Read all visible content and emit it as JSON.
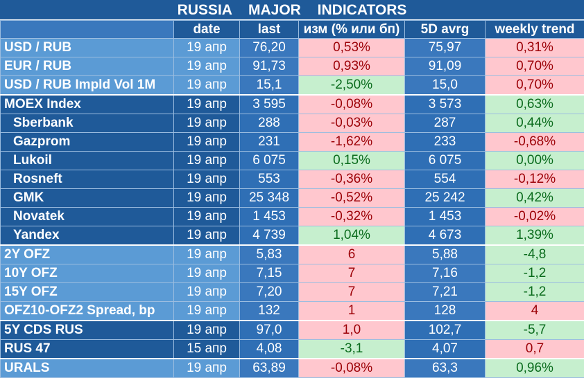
{
  "title": "RUSSIA MAJOR INDICATORS",
  "columns": [
    "",
    "date",
    "last",
    "изм (% или бп)",
    "5D avrg",
    "weekly trend"
  ],
  "rows": [
    {
      "name": "USD / RUB",
      "date": "19 апр",
      "last": "76,20",
      "chg": "0,53%",
      "chg_dir": "neg",
      "avg": "75,97",
      "trend": "0,31%",
      "trend_dir": "neg",
      "group": "g1",
      "indent": false,
      "sep": false
    },
    {
      "name": "EUR / RUB",
      "date": "19 апр",
      "last": "91,73",
      "chg": "0,93%",
      "chg_dir": "neg",
      "avg": "91,09",
      "trend": "0,70%",
      "trend_dir": "neg",
      "group": "g1",
      "indent": false,
      "sep": false
    },
    {
      "name": "USD / RUB Impld Vol 1M",
      "date": "19 апр",
      "last": "15,1",
      "chg": "-2,50%",
      "chg_dir": "pos",
      "avg": "15,0",
      "trend": "0,70%",
      "trend_dir": "neg",
      "group": "g1",
      "indent": false,
      "sep": false
    },
    {
      "name": "MOEX Index",
      "date": "19 апр",
      "last": "3 595",
      "chg": "-0,08%",
      "chg_dir": "neg",
      "avg": "3 573",
      "trend": "0,63%",
      "trend_dir": "pos",
      "group": "g2",
      "indent": false,
      "sep": true
    },
    {
      "name": "Sberbank",
      "date": "19 апр",
      "last": "288",
      "chg": "-0,03%",
      "chg_dir": "neg",
      "avg": "287",
      "trend": "0,44%",
      "trend_dir": "pos",
      "group": "g2",
      "indent": true,
      "sep": false
    },
    {
      "name": "Gazprom",
      "date": "19 апр",
      "last": "231",
      "chg": "-1,62%",
      "chg_dir": "neg",
      "avg": "233",
      "trend": "-0,68%",
      "trend_dir": "neg",
      "group": "g2",
      "indent": true,
      "sep": false
    },
    {
      "name": "Lukoil",
      "date": "19 апр",
      "last": "6 075",
      "chg": "0,15%",
      "chg_dir": "pos",
      "avg": "6 075",
      "trend": "0,00%",
      "trend_dir": "pos",
      "group": "g2",
      "indent": true,
      "sep": false
    },
    {
      "name": "Rosneft",
      "date": "19 апр",
      "last": "553",
      "chg": "-0,36%",
      "chg_dir": "neg",
      "avg": "554",
      "trend": "-0,12%",
      "trend_dir": "neg",
      "group": "g2",
      "indent": true,
      "sep": false
    },
    {
      "name": "GMK",
      "date": "19 апр",
      "last": "25 348",
      "chg": "-0,52%",
      "chg_dir": "neg",
      "avg": "25 242",
      "trend": "0,42%",
      "trend_dir": "pos",
      "group": "g2",
      "indent": true,
      "sep": false
    },
    {
      "name": "Novatek",
      "date": "19 апр",
      "last": "1 453",
      "chg": "-0,32%",
      "chg_dir": "neg",
      "avg": "1 453",
      "trend": "-0,02%",
      "trend_dir": "neg",
      "group": "g2",
      "indent": true,
      "sep": false
    },
    {
      "name": "Yandex",
      "date": "19 апр",
      "last": "4 739",
      "chg": "1,04%",
      "chg_dir": "pos",
      "avg": "4 673",
      "trend": "1,39%",
      "trend_dir": "pos",
      "group": "g2",
      "indent": true,
      "sep": false
    },
    {
      "name": "2Y OFZ",
      "date": "19 апр",
      "last": "5,83",
      "chg": "6",
      "chg_dir": "neg",
      "avg": "5,88",
      "trend": "-4,8",
      "trend_dir": "pos",
      "group": "g1",
      "indent": false,
      "sep": true
    },
    {
      "name": "10Y OFZ",
      "date": "19 апр",
      "last": "7,15",
      "chg": "7",
      "chg_dir": "neg",
      "avg": "7,16",
      "trend": "-1,2",
      "trend_dir": "pos",
      "group": "g1",
      "indent": false,
      "sep": false
    },
    {
      "name": "15Y OFZ",
      "date": "19 апр",
      "last": "7,20",
      "chg": "7",
      "chg_dir": "neg",
      "avg": "7,21",
      "trend": "-1,2",
      "trend_dir": "pos",
      "group": "g1",
      "indent": false,
      "sep": false
    },
    {
      "name": "OFZ10-OFZ2 Spread, bp",
      "date": "19 апр",
      "last": "132",
      "chg": "1",
      "chg_dir": "neg",
      "avg": "128",
      "trend": "4",
      "trend_dir": "neg",
      "group": "g1",
      "indent": false,
      "sep": false
    },
    {
      "name": "5Y CDS RUS",
      "date": "19 апр",
      "last": "97,0",
      "chg": "1,0",
      "chg_dir": "neg",
      "avg": "102,7",
      "trend": "-5,7",
      "trend_dir": "pos",
      "group": "g2",
      "indent": false,
      "sep": true
    },
    {
      "name": "RUS 47",
      "date": "15 апр",
      "last": "4,08",
      "chg": "-3,1",
      "chg_dir": "pos",
      "avg": "4,07",
      "trend": "0,7",
      "trend_dir": "neg",
      "group": "g2",
      "indent": false,
      "sep": false
    },
    {
      "name": "URALS",
      "date": "19 апр",
      "last": "63,89",
      "chg": "-0,08%",
      "chg_dir": "neg",
      "avg": "63,3",
      "trend": "0,96%",
      "trend_dir": "pos",
      "group": "g1",
      "indent": false,
      "sep": true
    }
  ],
  "colors": {
    "positive_bg": "#c6efce",
    "negative_bg": "#ffc7ce",
    "header_bg": "#1f5a99",
    "accent_blue": "#5b9bd5"
  }
}
